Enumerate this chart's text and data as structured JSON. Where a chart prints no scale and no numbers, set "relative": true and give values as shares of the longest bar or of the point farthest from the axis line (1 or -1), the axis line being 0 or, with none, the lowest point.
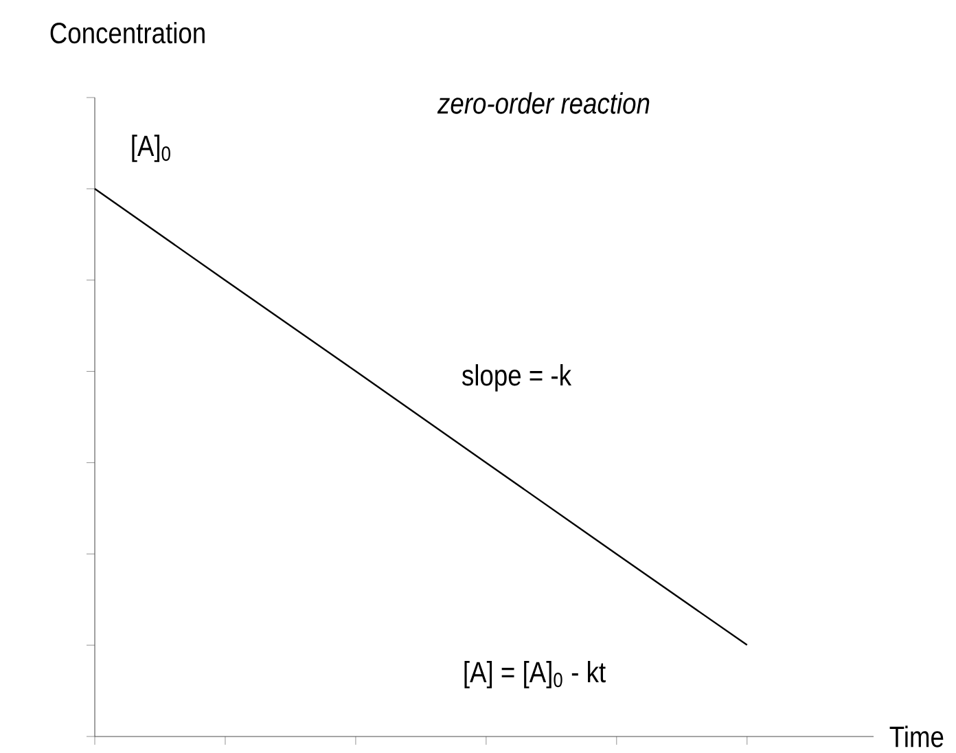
{
  "chart_data": {
    "type": "line",
    "title": "zero-order reaction",
    "ylabel": "Concentration",
    "xlabel": "Time",
    "categories": [
      null,
      null,
      null,
      null,
      null,
      null
    ],
    "values": [
      1,
      0.833,
      0.667,
      0.5,
      0.333,
      0.167
    ],
    "color": "#000000",
    "relative": true,
    "annotations": [
      "[A]$_{0}$",
      "slope = -k",
      "[A] = [A]$_{0}$ - kt"
    ]
  }
}
